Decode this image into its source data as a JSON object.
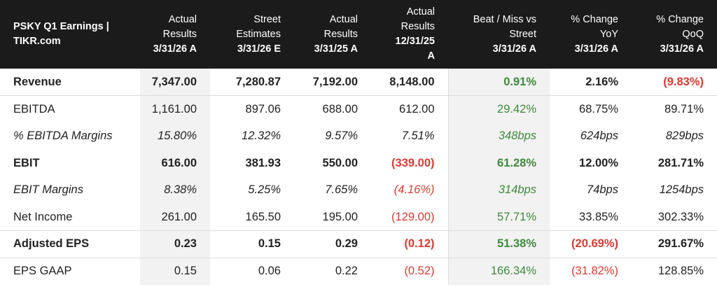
{
  "header": {
    "title": "PSKY Q1 Earnings | TIKR.com",
    "columns": [
      {
        "lines": [
          "Actual",
          "Results"
        ],
        "date": "3/31/26 A"
      },
      {
        "lines": [
          "Street",
          "Estimates"
        ],
        "date": "3/31/26 E"
      },
      {
        "lines": [
          "Actual",
          "Results"
        ],
        "date": "3/31/25 A"
      },
      {
        "lines": [
          "Actual",
          "Results"
        ],
        "date": "12/31/25",
        "date2": "A"
      },
      {
        "lines": [
          "Beat / Miss vs",
          "Street"
        ],
        "date": "3/31/26 A"
      },
      {
        "lines": [
          "% Change",
          "YoY"
        ],
        "date": "3/31/26 A"
      },
      {
        "lines": [
          "% Change",
          "QoQ"
        ],
        "date": "3/31/26 A"
      }
    ]
  },
  "rows": [
    {
      "label": "Revenue",
      "values": [
        "7,347.00",
        "7,280.87",
        "7,192.00",
        "8,148.00",
        "0.91%",
        "2.16%",
        "(9.83%)"
      ]
    },
    {
      "label": "EBITDA",
      "values": [
        "1,161.00",
        "897.06",
        "688.00",
        "612.00",
        "29.42%",
        "68.75%",
        "89.71%"
      ]
    },
    {
      "label": "% EBITDA Margins",
      "values": [
        "15.80%",
        "12.32%",
        "9.57%",
        "7.51%",
        "348bps",
        "624bps",
        "829bps"
      ]
    },
    {
      "label": "EBIT",
      "values": [
        "616.00",
        "381.93",
        "550.00",
        "(339.00)",
        "61.28%",
        "12.00%",
        "281.71%"
      ]
    },
    {
      "label": "EBIT Margins",
      "values": [
        "8.38%",
        "5.25%",
        "7.65%",
        "(4.16%)",
        "314bps",
        "74bps",
        "1254bps"
      ]
    },
    {
      "label": "Net Income",
      "values": [
        "261.00",
        "165.50",
        "195.00",
        "(129.00)",
        "57.71%",
        "33.85%",
        "302.33%"
      ]
    },
    {
      "label": "Adjusted EPS",
      "values": [
        "0.23",
        "0.15",
        "0.29",
        "(0.12)",
        "51.38%",
        "(20.69%)",
        "291.67%"
      ]
    },
    {
      "label": "EPS GAAP",
      "values": [
        "0.15",
        "0.06",
        "0.22",
        "(0.52)",
        "166.34%",
        "(31.82%)",
        "128.85%"
      ]
    }
  ],
  "colors": {
    "positive": "#3d8a3a",
    "negative": "#d93a32",
    "header_bg": "#1b1b1b",
    "shade": "#f2f2f2"
  }
}
